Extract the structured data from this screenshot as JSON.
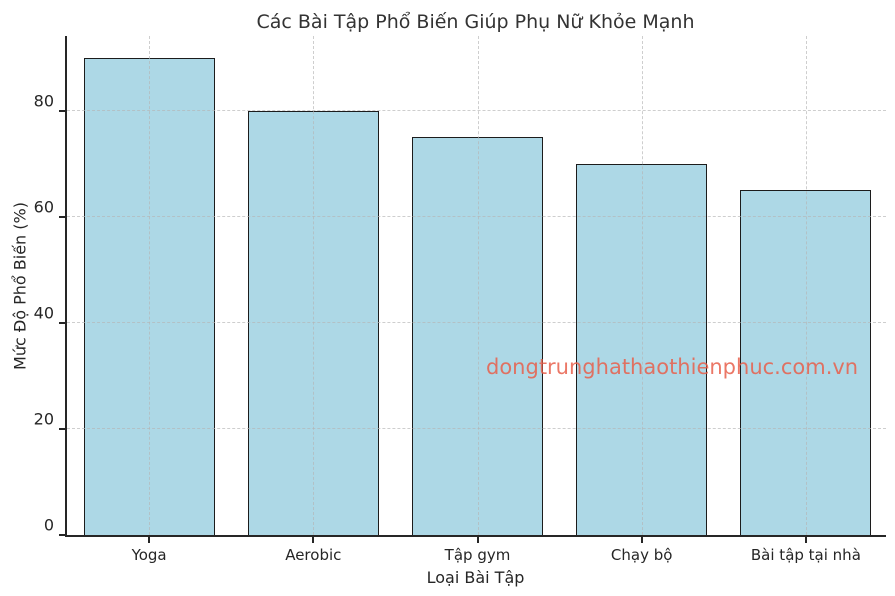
{
  "title": "Các Bài Tập Phổ Biến Giúp Phụ Nữ Khỏe Mạnh",
  "watermark": "dongtrunghathaothienphuc.com.vn",
  "colors": {
    "bar_fill": "#ADD8E6",
    "bar_edge": "#1c1c1c",
    "grid": "#b5b5b5",
    "spine": "#262626",
    "text": "#262626",
    "title_text": "#333333",
    "watermark": "#e8604c",
    "background": "#ffffff"
  },
  "chart_data": {
    "type": "bar",
    "title": "Các Bài Tập Phổ Biến Giúp Phụ Nữ Khỏe Mạnh",
    "categories": [
      "Yoga",
      "Aerobic",
      "Tập gym",
      "Chạy bộ",
      "Bài tập tại nhà"
    ],
    "values": [
      90,
      80,
      75,
      70,
      65
    ],
    "xlabel": "Loại Bài Tập",
    "ylabel": "Mức Độ Phổ Biến (%)",
    "ylim": [
      0,
      94.5
    ],
    "yticks": [
      0,
      20,
      40,
      60,
      80
    ],
    "grid": "dashed",
    "grid_axes": "both",
    "grid_over_bars": true,
    "legend": "none"
  }
}
